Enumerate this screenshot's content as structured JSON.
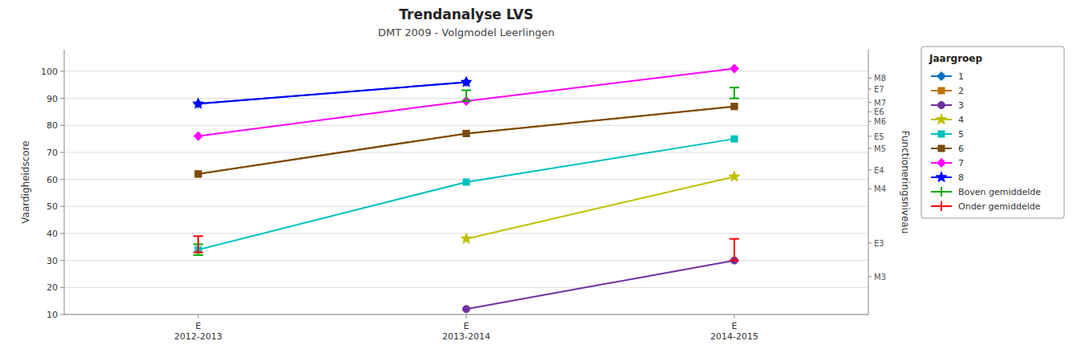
{
  "chart_data": {
    "type": "line",
    "title": "Trendanalyse LVS",
    "subtitle": "DMT 2009 - Volgmodel Leerlingen",
    "categories": [
      "E\n2012-2013",
      "E\n2013-2014",
      "E\n2014-2015"
    ],
    "ylabel": "Vaardigheidscore",
    "y2label": "Functioneringsniveau",
    "ylim": [
      10,
      108
    ],
    "yticks": [
      10,
      20,
      30,
      40,
      50,
      60,
      70,
      80,
      90,
      100
    ],
    "y2lim": [
      10,
      108
    ],
    "y2ticks": [
      {
        "value": 97.5,
        "label": "M8"
      },
      {
        "value": 93.5,
        "label": "E7"
      },
      {
        "value": 88.5,
        "label": "M7"
      },
      {
        "value": 85.0,
        "label": "E6"
      },
      {
        "value": 81.5,
        "label": "M6"
      },
      {
        "value": 76.0,
        "label": "E5"
      },
      {
        "value": 71.5,
        "label": "M5"
      },
      {
        "value": 63.5,
        "label": "E4"
      },
      {
        "value": 56.5,
        "label": "M4"
      },
      {
        "value": 36.5,
        "label": "E3"
      },
      {
        "value": 24.0,
        "label": "M3"
      }
    ],
    "grid": true,
    "legend": "right",
    "legend_title": "Jaargroep",
    "series": [
      {
        "name": "1",
        "color": "#0070c0",
        "marker": "diamond",
        "values": [
          88,
          96,
          null
        ]
      },
      {
        "name": "2",
        "color": "#c07000",
        "marker": "square",
        "values": [
          62,
          77,
          87
        ]
      },
      {
        "name": "3",
        "color": "#7030a0",
        "marker": "circle",
        "values": [
          null,
          12,
          30
        ]
      },
      {
        "name": "4",
        "color": "#c0c000",
        "marker": "star",
        "values": [
          null,
          38,
          61
        ]
      },
      {
        "name": "5",
        "color": "#00c0c0",
        "marker": "square",
        "values": [
          34,
          59,
          75
        ]
      },
      {
        "name": "6",
        "color": "#7b4a10",
        "marker": "square",
        "values": [
          62,
          77,
          87
        ]
      },
      {
        "name": "7",
        "color": "#ff00ff",
        "marker": "diamond",
        "values": [
          76,
          89,
          101
        ]
      },
      {
        "name": "8",
        "color": "#0000ff",
        "marker": "star",
        "values": [
          88,
          96,
          null
        ]
      },
      {
        "name": "Boven gemiddelde",
        "type": "errorbar",
        "color": "#00aa00",
        "values": [
          34,
          91,
          92
        ],
        "errors": [
          2,
          2,
          2
        ]
      },
      {
        "name": "Onder gemiddelde",
        "type": "errorbar",
        "color": "#ff0000",
        "values": [
          36,
          null,
          34
        ],
        "errors": [
          3,
          null,
          4
        ]
      }
    ]
  }
}
